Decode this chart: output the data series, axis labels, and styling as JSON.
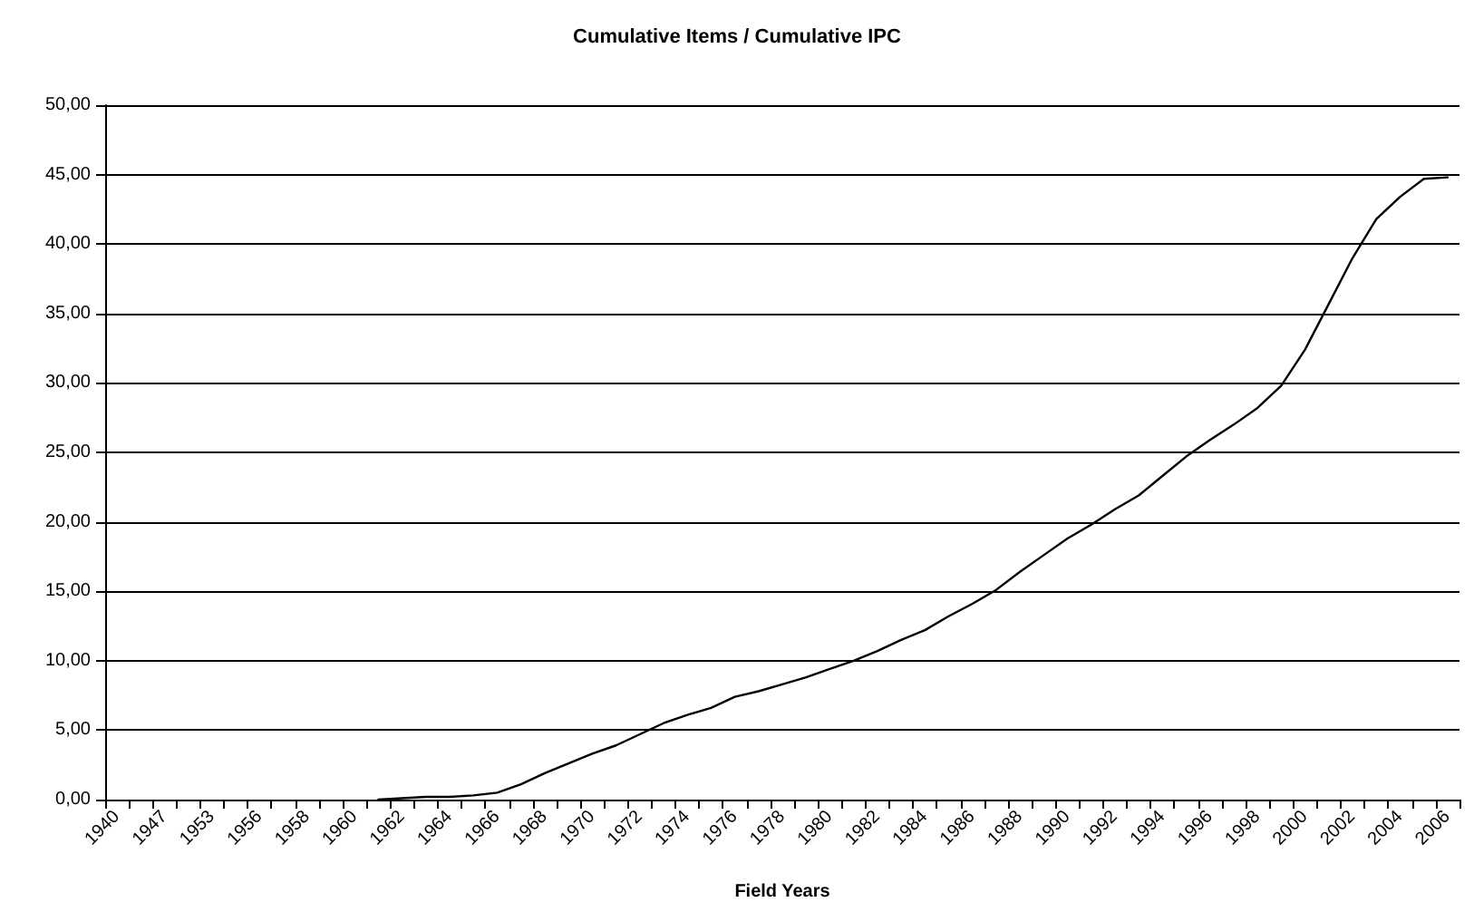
{
  "chart_data": {
    "type": "line",
    "title": "Cumulative Items / Cumulative IPC",
    "xlabel": "Field Years",
    "categories": [
      "1940",
      null,
      "1947",
      null,
      "1953",
      null,
      "1956",
      null,
      "1958",
      null,
      "1960",
      null,
      "1962",
      null,
      "1964",
      null,
      "1966",
      null,
      "1968",
      null,
      "1970",
      null,
      "1972",
      null,
      "1974",
      null,
      "1976",
      null,
      "1978",
      null,
      "1980",
      null,
      "1982",
      null,
      "1984",
      null,
      "1986",
      null,
      "1988",
      null,
      "1990",
      null,
      "1992",
      null,
      "1994",
      null,
      "1996",
      null,
      "1998",
      null,
      "2000",
      null,
      "2002",
      null,
      "2004",
      null,
      "2006"
    ],
    "series": [
      {
        "color": "#000000",
        "values": [
          null,
          null,
          null,
          null,
          null,
          null,
          null,
          null,
          null,
          null,
          null,
          0.0,
          0.1,
          0.2,
          0.2,
          0.3,
          0.5,
          1.1,
          1.9,
          2.6,
          3.3,
          3.9,
          4.7,
          5.5,
          6.1,
          6.6,
          7.4,
          7.8,
          8.3,
          8.8,
          9.4,
          10.0,
          10.7,
          11.5,
          12.2,
          13.2,
          14.1,
          15.1,
          16.4,
          17.6,
          18.8,
          19.8,
          20.9,
          21.9,
          23.3,
          24.7,
          25.9,
          27.0,
          28.2,
          29.8,
          32.4,
          35.7,
          39.0,
          41.8,
          43.4,
          44.7,
          44.8
        ]
      }
    ],
    "ylim": [
      0,
      50
    ],
    "yticks": [
      {
        "value": 0,
        "label": "0,00"
      },
      {
        "value": 5,
        "label": "5,00"
      },
      {
        "value": 10,
        "label": "10,00"
      },
      {
        "value": 15,
        "label": "15,00"
      },
      {
        "value": 20,
        "label": "20,00"
      },
      {
        "value": 25,
        "label": "25,00"
      },
      {
        "value": 30,
        "label": "30,00"
      },
      {
        "value": 35,
        "label": "35,00"
      },
      {
        "value": 40,
        "label": "40,00"
      },
      {
        "value": 45,
        "label": "45,00"
      },
      {
        "value": 50,
        "label": "50,00"
      }
    ],
    "grid": "y",
    "marker": "none",
    "line_style": "solid"
  }
}
